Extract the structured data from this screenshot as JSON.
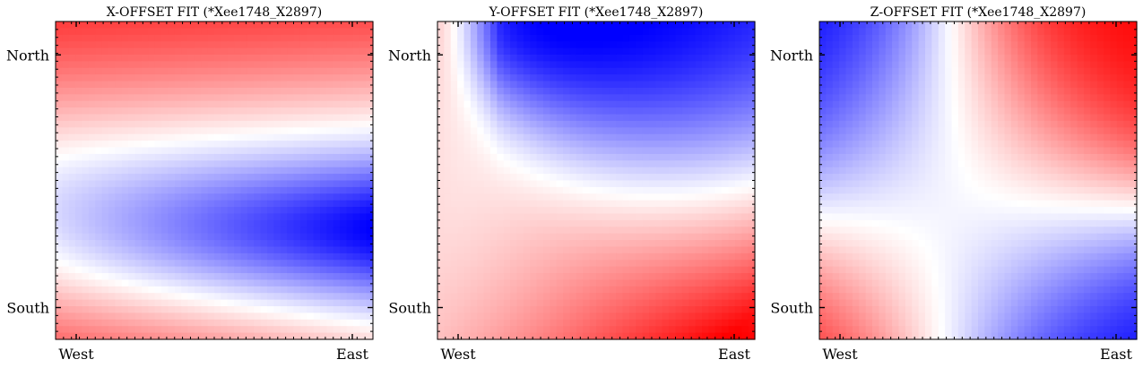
{
  "chart_data": [
    {
      "type": "heatmap",
      "title": "X-OFFSET FIT (*Xee1748_X2897)",
      "xticks": [
        "West",
        "East"
      ],
      "yticks": [
        "North",
        "South"
      ],
      "colormap": "bwr",
      "colors": {
        "low": "#0000ff",
        "mid": "#ffffff",
        "high": "#ff0000"
      },
      "grid": false,
      "value_pattern": {
        "description": "red band along the north edge, white crossing near upper third, blue over center-south reaching strongest toward the east, white again near the south edge with faint red at bottom-left",
        "north_west": 1.0,
        "north_east": 1.0,
        "center_west": -0.4,
        "center_east": -1.0,
        "south_west": 0.2,
        "south_east": 0.0
      }
    },
    {
      "type": "heatmap",
      "title": "Y-OFFSET FIT (*Xee1748_X2897)",
      "xticks": [
        "West",
        "East"
      ],
      "yticks": [
        "North",
        "South"
      ],
      "colormap": "bwr",
      "colors": {
        "low": "#0000ff",
        "mid": "#ffffff",
        "high": "#ff0000"
      },
      "grid": false,
      "value_pattern": {
        "description": "blue wedge in the upper middle to north-east, near white along the west, red growing toward the south-east corner",
        "north_west": 0.15,
        "north_east": -0.8,
        "center_west": 0.0,
        "center_east": 0.3,
        "south_west": 0.0,
        "south_east": 1.0
      }
    },
    {
      "type": "heatmap",
      "title": "Z-OFFSET FIT (*Xee1748_X2897)",
      "xticks": [
        "West",
        "East"
      ],
      "yticks": [
        "North",
        "South"
      ],
      "colormap": "bwr",
      "colors": {
        "low": "#0000ff",
        "mid": "#ffffff",
        "high": "#ff0000"
      },
      "grid": false,
      "value_pattern": {
        "description": "blue at north-west and south-east, red at north-east and south-west, white diagonal transitions between them",
        "north_west": -0.85,
        "north_east": 1.0,
        "center_west": 0.3,
        "center_east": -0.2,
        "south_west": 1.0,
        "south_east": -1.0
      }
    }
  ]
}
